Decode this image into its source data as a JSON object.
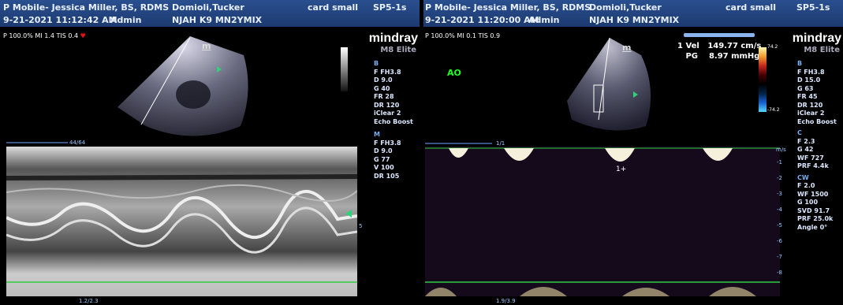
{
  "left": {
    "header": {
      "institution": "P Mobile- Jessica Miller, BS, RDMS",
      "patient": "Domioli,Tucker",
      "preset": "card small",
      "probe": "SP5-1s",
      "datetime": "9-21-2021 11:12:42 AM",
      "operator": "Admin",
      "patient_id": "NJAH K9 MN2YMIX"
    },
    "power_line": "P 100.0% MI 1.4 TIS 0.4",
    "brand": "mindray",
    "model": "M8 Elite",
    "m_marker": "m",
    "params": {
      "b_title": "B",
      "b": [
        "F FH3.8",
        "D 9.0",
        "G 40",
        "FR 28",
        "DR 120",
        "iClear 2",
        "Echo Boost"
      ],
      "m_title": "M",
      "m": [
        "F FH3.8",
        "D 9.0",
        "G 77",
        "V 100",
        "DR 105"
      ]
    },
    "scale_top": "44/64",
    "scale_bottom": "1.2/2.3",
    "depth_mark": "5"
  },
  "right": {
    "header": {
      "institution": "P Mobile- Jessica Miller, BS, RDMS",
      "patient": "Domioli,Tucker",
      "preset": "card small",
      "probe": "SP5-1s",
      "datetime": "9-21-2021 11:20:00 AM",
      "operator": "Admin",
      "patient_id": "NJAH K9 MN2YMIX"
    },
    "power_line": "P 100.0% MI 0.1 TIS 0.9",
    "brand": "mindray",
    "model": "M8 Elite",
    "m_marker": "m",
    "label_ao": "AO",
    "measurement": {
      "index": "1",
      "vel_label": "Vel",
      "vel_value": "149.77 cm/s",
      "pg_label": "PG",
      "pg_value": "8.97 mmHg"
    },
    "colorbar_top": "74.2",
    "colorbar_bottom": "-74.2",
    "params": {
      "b_title": "B",
      "b": [
        "F FH3.8",
        "D 15.0",
        "G 63",
        "FR 45",
        "DR 120",
        "iClear 2",
        "Echo Boost"
      ],
      "c_title": "C",
      "c": [
        "F 2.3",
        "G 42",
        "WF 727",
        "PRF 4.4k"
      ],
      "cw_title": "CW",
      "cw": [
        "F 2.0",
        "WF 1500",
        "G 100",
        "SVD 91.7",
        "PRF 25.0k",
        "Angle 0°"
      ]
    },
    "doppler_unit": "m/s",
    "doppler_scale": [
      "-1",
      "-2",
      "-3",
      "-4",
      "-5",
      "-6",
      "-7",
      "-8"
    ],
    "scale_top": "1/1",
    "scale_bottom": "1.9/3.9",
    "cursor_label": "1+"
  },
  "colors": {
    "header": "#1c3a70",
    "params": "#dde8ff",
    "section": "#79aef0",
    "ao": "#22ff22",
    "baseline": "#2ecc40"
  }
}
